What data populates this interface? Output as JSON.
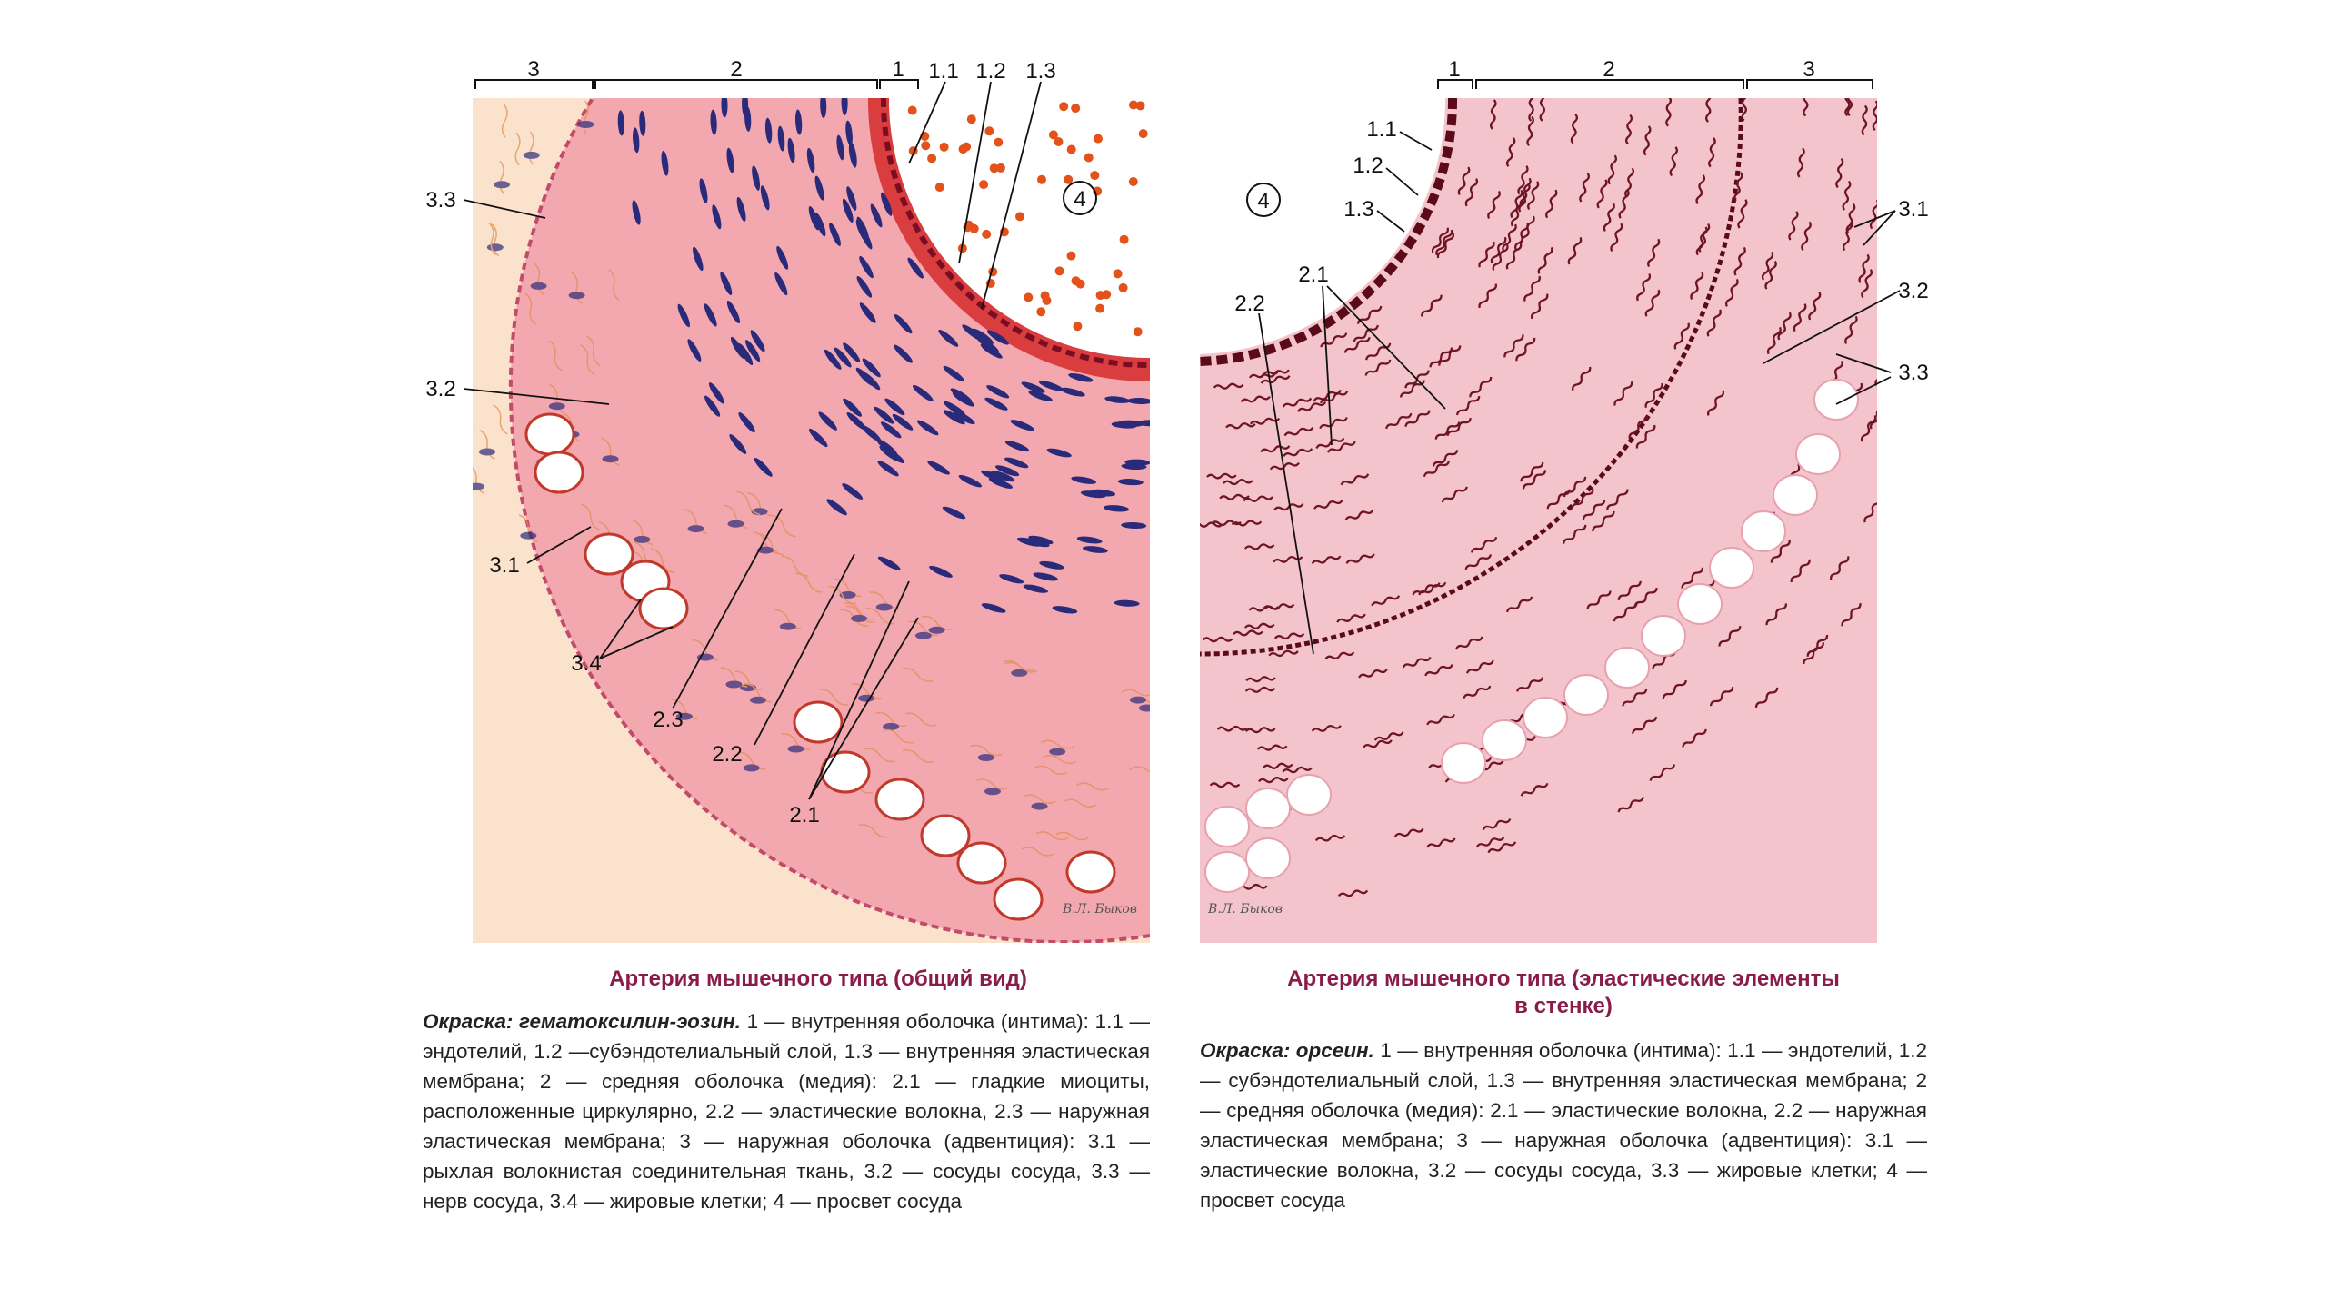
{
  "left_plate": {
    "title": "Артерия мышечного типа (общий вид)",
    "stain_label": "Окраска: гематоксилин-эозин.",
    "description": "1 — внутренняя оболочка (интима): 1.1 — эндотелий, 1.2 —субэндотелиальный слой, 1.3 — внутренняя эластическая мембрана; 2 — средняя оболочка (медия): 2.1 — гладкие миоциты, расположенные циркулярно, 2.2 — эластические волокна, 2.3 — наружная эластическая мембрана; 3 — наружная оболочка (адвентиция): 3.1 — рыхлая волокнистая соединительная ткань, 3.2 — сосуды сосуда, 3.3 — нерв сосуда, 3.4 — жировые клетки; 4 — просвет сосуда",
    "brackets": [
      "3",
      "2",
      "1"
    ],
    "labels": [
      "1.1",
      "1.2",
      "1.3",
      "3.3",
      "3.2",
      "3.1",
      "3.4",
      "2.3",
      "2.2",
      "2.1",
      "4"
    ],
    "signature": "В.Л. Быков"
  },
  "right_plate": {
    "title_line1": "Артерия мышечного типа (эластические элементы",
    "title_line2": "в стенке)",
    "stain_label": "Окраска: орсеин.",
    "description": "1 — внутренняя оболочка (интима): 1.1 — эндотелий, 1.2 — субэндотелиальный слой, 1.3 — внутренняя эластическая мембрана; 2 — средняя оболочка (медия): 2.1 — эластические волокна, 2.2 — наружная эластическая мембрана; 3 — наружная оболочка (адвентиция): 3.1 — эластические волокна, 3.2 — сосуды сосуда, 3.3 — жировые клетки; 4 — просвет сосуда",
    "brackets": [
      "1",
      "2",
      "3"
    ],
    "labels": [
      "1.1",
      "1.2",
      "1.3",
      "2.1",
      "2.2",
      "3.1",
      "3.2",
      "3.3",
      "4"
    ],
    "signature": "В.Л. Быков"
  },
  "colors": {
    "caption_title": "#8a1c4a",
    "media_he": "#f2a9b1",
    "adventitia_he": "#fbe2cc",
    "nuclei": "#2a2a7a",
    "rbc": "#e2521a",
    "orcein_bg": "#f3c4cb",
    "elastic_fiber": "#6e1422"
  }
}
